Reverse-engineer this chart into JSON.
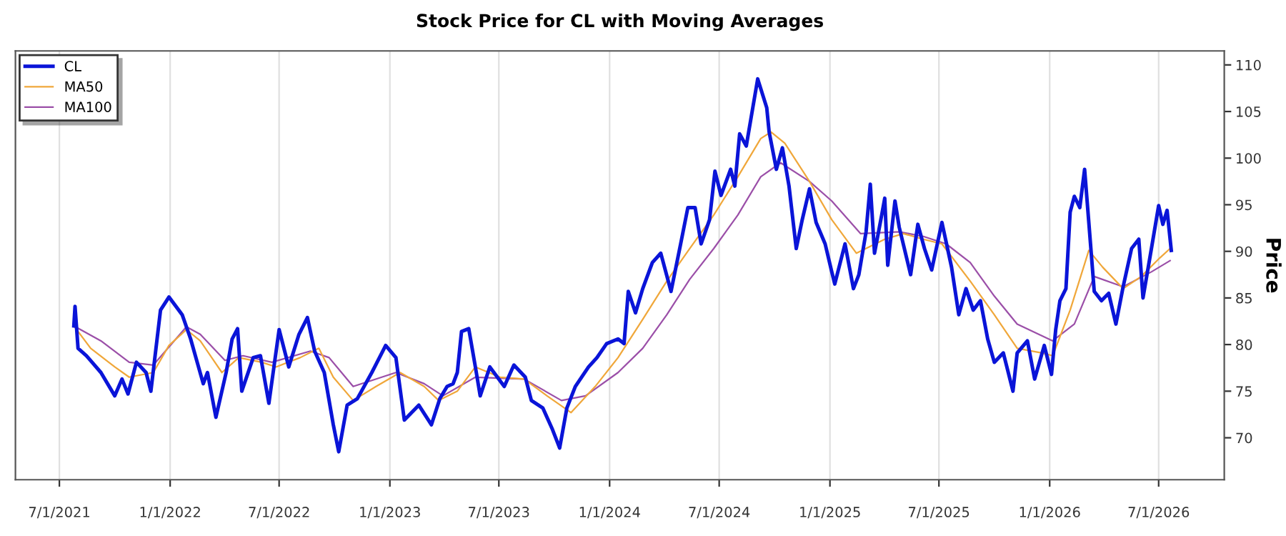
{
  "chart_data": {
    "type": "line",
    "title": "Stock Price for CL with Moving Averages",
    "ylabel": "Price",
    "xlim": [
      "2021-04-19",
      "2026-10-18"
    ],
    "ylim": [
      65.5,
      111.5
    ],
    "xticks": [
      {
        "value": "2021-07-01",
        "label": "7/1/2021"
      },
      {
        "value": "2022-01-01",
        "label": "1/1/2022"
      },
      {
        "value": "2022-07-01",
        "label": "7/1/2022"
      },
      {
        "value": "2023-01-01",
        "label": "1/1/2023"
      },
      {
        "value": "2023-07-01",
        "label": "7/1/2023"
      },
      {
        "value": "2024-01-01",
        "label": "1/1/2024"
      },
      {
        "value": "2024-07-01",
        "label": "7/1/2024"
      },
      {
        "value": "2025-01-01",
        "label": "1/1/2025"
      },
      {
        "value": "2025-07-01",
        "label": "7/1/2025"
      },
      {
        "value": "2026-01-01",
        "label": "1/1/2026"
      },
      {
        "value": "2026-07-01",
        "label": "7/1/2026"
      }
    ],
    "yticks": [
      70,
      75,
      80,
      85,
      90,
      95,
      100,
      105,
      110
    ],
    "grid": "x",
    "legend": "top left",
    "marker": "none",
    "line_style": "solid",
    "series": [
      {
        "name": "CL",
        "color": "#0a14d8",
        "x": [
          "2021-07-25",
          "2021-07-27",
          "2021-08-01",
          "2021-08-15",
          "2021-09-08",
          "2021-10-01",
          "2021-10-13",
          "2021-10-23",
          "2021-11-06",
          "2021-11-22",
          "2021-11-30",
          "2021-12-16",
          "2021-12-30",
          "2022-01-21",
          "2022-02-04",
          "2022-02-25",
          "2022-03-04",
          "2022-03-18",
          "2022-04-04",
          "2022-04-14",
          "2022-04-23",
          "2022-04-30",
          "2022-05-19",
          "2022-05-31",
          "2022-06-14",
          "2022-07-01",
          "2022-07-17",
          "2022-08-03",
          "2022-08-17",
          "2022-08-29",
          "2022-09-14",
          "2022-09-29",
          "2022-10-08",
          "2022-10-22",
          "2022-11-08",
          "2022-12-02",
          "2022-12-25",
          "2023-01-11",
          "2023-01-25",
          "2023-02-18",
          "2023-03-11",
          "2023-03-25",
          "2023-04-06",
          "2023-04-16",
          "2023-04-23",
          "2023-04-30",
          "2023-05-12",
          "2023-05-23",
          "2023-05-31",
          "2023-06-16",
          "2023-07-10",
          "2023-07-26",
          "2023-08-14",
          "2023-08-24",
          "2023-09-12",
          "2023-09-28",
          "2023-10-10",
          "2023-10-22",
          "2023-11-05",
          "2023-11-27",
          "2023-12-11",
          "2023-12-27",
          "2024-01-15",
          "2024-01-25",
          "2024-02-01",
          "2024-02-13",
          "2024-02-25",
          "2024-03-12",
          "2024-03-26",
          "2024-04-12",
          "2024-04-28",
          "2024-05-10",
          "2024-05-22",
          "2024-06-01",
          "2024-06-15",
          "2024-06-24",
          "2024-07-04",
          "2024-07-20",
          "2024-07-27",
          "2024-08-04",
          "2024-08-15",
          "2024-09-03",
          "2024-09-18",
          "2024-09-22",
          "2024-10-04",
          "2024-10-14",
          "2024-10-25",
          "2024-11-06",
          "2024-11-16",
          "2024-11-28",
          "2024-12-09",
          "2024-12-24",
          "2025-01-04",
          "2025-01-09",
          "2025-01-26",
          "2025-02-09",
          "2025-02-18",
          "2025-03-02",
          "2025-03-09",
          "2025-03-16",
          "2025-03-28",
          "2025-04-02",
          "2025-04-07",
          "2025-04-19",
          "2025-04-26",
          "2025-05-15",
          "2025-05-27",
          "2025-06-07",
          "2025-06-19",
          "2025-07-06",
          "2025-07-22",
          "2025-08-03",
          "2025-08-15",
          "2025-08-27",
          "2025-09-08",
          "2025-09-20",
          "2025-10-01",
          "2025-10-16",
          "2025-11-01",
          "2025-11-08",
          "2025-11-25",
          "2025-12-07",
          "2025-12-23",
          "2026-01-04",
          "2026-01-11",
          "2026-01-18",
          "2026-01-28",
          "2026-02-04",
          "2026-02-11",
          "2026-02-20",
          "2026-02-28",
          "2026-03-07",
          "2026-03-16",
          "2026-03-28",
          "2026-04-09",
          "2026-04-21",
          "2026-05-03",
          "2026-05-17",
          "2026-05-29",
          "2026-06-05",
          "2026-06-19",
          "2026-07-01",
          "2026-07-08",
          "2026-07-15",
          "2026-07-22"
        ],
        "values": [
          82.0,
          84.1,
          79.6,
          78.8,
          77.0,
          74.5,
          76.3,
          74.7,
          78.1,
          77.0,
          75.0,
          83.7,
          85.1,
          83.2,
          80.6,
          75.8,
          77.0,
          72.2,
          77.0,
          80.6,
          81.7,
          75.0,
          78.6,
          78.8,
          73.7,
          81.6,
          77.6,
          81.1,
          82.9,
          79.3,
          77.0,
          71.4,
          68.5,
          73.5,
          74.2,
          77.0,
          79.9,
          78.6,
          71.9,
          73.5,
          71.4,
          74.2,
          75.5,
          75.8,
          77.0,
          81.4,
          81.7,
          77.6,
          74.5,
          77.6,
          75.5,
          77.8,
          76.5,
          74.0,
          73.2,
          70.9,
          68.9,
          73.2,
          75.5,
          77.6,
          78.6,
          80.1,
          80.6,
          80.1,
          85.7,
          83.4,
          86.0,
          88.8,
          89.8,
          85.7,
          90.8,
          94.7,
          94.7,
          90.8,
          93.4,
          98.6,
          96.0,
          98.8,
          97.0,
          102.6,
          101.3,
          108.5,
          105.4,
          102.8,
          98.8,
          101.1,
          97.0,
          90.3,
          93.4,
          96.7,
          93.1,
          90.8,
          87.8,
          86.5,
          90.8,
          86.0,
          87.5,
          92.1,
          97.2,
          89.8,
          93.9,
          95.7,
          88.5,
          95.4,
          92.6,
          87.5,
          92.9,
          90.3,
          88.0,
          93.1,
          88.3,
          83.2,
          86.0,
          83.7,
          84.7,
          80.6,
          78.1,
          79.1,
          75.0,
          79.1,
          80.4,
          76.3,
          79.9,
          76.8,
          81.6,
          84.7,
          86.0,
          94.2,
          95.9,
          94.7,
          98.8,
          93.1,
          85.7,
          84.7,
          85.5,
          82.2,
          86.2,
          90.3,
          91.3,
          85.0,
          90.3,
          94.9,
          92.9,
          94.4,
          90.1
        ]
      },
      {
        "name": "MA50",
        "color": "#f0a73a",
        "x": [
          "2021-07-25",
          "2021-08-22",
          "2021-10-01",
          "2021-10-25",
          "2021-12-04",
          "2021-12-30",
          "2022-01-28",
          "2022-02-20",
          "2022-03-28",
          "2022-04-25",
          "2022-06-02",
          "2022-06-26",
          "2022-08-05",
          "2022-09-05",
          "2022-09-29",
          "2022-11-01",
          "2022-12-09",
          "2023-01-18",
          "2023-02-27",
          "2023-03-23",
          "2023-04-23",
          "2023-05-23",
          "2023-07-03",
          "2023-08-12",
          "2023-09-19",
          "2023-10-29",
          "2023-12-08",
          "2024-01-15",
          "2024-02-25",
          "2024-04-05",
          "2024-05-13",
          "2024-06-22",
          "2024-08-01",
          "2024-09-08",
          "2024-09-25",
          "2024-10-18",
          "2024-11-28",
          "2025-01-04",
          "2025-02-14",
          "2025-04-02",
          "2025-05-03",
          "2025-06-05",
          "2025-07-06",
          "2025-08-22",
          "2025-10-01",
          "2025-11-08",
          "2025-12-19",
          "2026-01-06",
          "2026-02-04",
          "2026-03-07",
          "2026-03-30",
          "2026-05-03",
          "2026-06-02",
          "2026-07-03",
          "2026-07-20"
        ],
        "values": [
          82.0,
          79.6,
          77.6,
          76.5,
          77.0,
          79.9,
          81.6,
          80.4,
          77.0,
          78.6,
          78.1,
          77.6,
          78.6,
          79.6,
          76.5,
          74.0,
          75.5,
          77.0,
          75.5,
          74.0,
          75.0,
          77.6,
          76.5,
          76.3,
          74.5,
          72.7,
          75.5,
          78.6,
          82.7,
          86.8,
          90.3,
          93.9,
          98.0,
          102.1,
          102.8,
          101.6,
          97.5,
          93.4,
          89.8,
          91.3,
          91.9,
          91.3,
          90.8,
          86.8,
          83.2,
          79.6,
          79.1,
          78.8,
          83.7,
          90.1,
          88.3,
          86.0,
          87.3,
          89.3,
          90.3
        ]
      },
      {
        "name": "MA100",
        "color": "#9b4fa8",
        "x": [
          "2021-07-25",
          "2021-09-08",
          "2021-10-25",
          "2021-12-04",
          "2022-01-28",
          "2022-02-20",
          "2022-04-02",
          "2022-05-02",
          "2022-06-19",
          "2022-08-22",
          "2022-09-22",
          "2022-11-01",
          "2023-01-11",
          "2023-02-27",
          "2023-03-30",
          "2023-05-23",
          "2023-08-12",
          "2023-10-13",
          "2023-11-22",
          "2024-01-15",
          "2024-02-25",
          "2024-04-05",
          "2024-05-13",
          "2024-06-22",
          "2024-08-01",
          "2024-09-08",
          "2024-10-11",
          "2024-11-28",
          "2025-01-04",
          "2025-02-21",
          "2025-04-26",
          "2025-06-05",
          "2025-07-13",
          "2025-08-22",
          "2025-10-01",
          "2025-11-08",
          "2026-01-06",
          "2026-02-11",
          "2026-03-16",
          "2026-05-03",
          "2026-06-19",
          "2026-07-20"
        ],
        "values": [
          82.0,
          80.4,
          78.1,
          77.8,
          81.9,
          81.1,
          78.3,
          78.8,
          78.1,
          79.3,
          78.6,
          75.5,
          77.0,
          75.8,
          74.5,
          76.5,
          76.3,
          74.0,
          74.5,
          77.0,
          79.6,
          83.2,
          87.0,
          90.3,
          93.9,
          98.0,
          99.5,
          97.5,
          95.4,
          91.9,
          92.1,
          91.6,
          90.8,
          88.8,
          85.2,
          82.2,
          80.4,
          82.2,
          87.3,
          86.2,
          87.8,
          89.0
        ]
      }
    ]
  }
}
